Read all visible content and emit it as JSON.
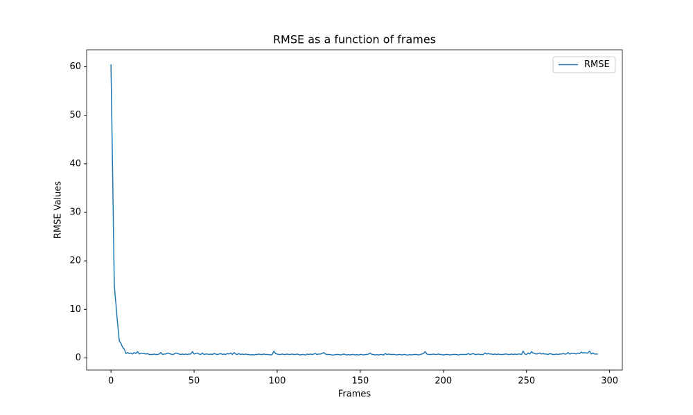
{
  "chart_data": {
    "type": "line",
    "title": "RMSE as a function of frames",
    "xlabel": "Frames",
    "ylabel": "RMSE Values",
    "xlim": [
      -14.65,
      307.65
    ],
    "ylim": [
      -2.5,
      63.5
    ],
    "xticks": [
      0,
      50,
      100,
      150,
      200,
      250,
      300
    ],
    "yticks": [
      0,
      10,
      20,
      30,
      40,
      50,
      60
    ],
    "legend": "upper right",
    "grid": false,
    "x": [
      0,
      1,
      2,
      3,
      4,
      5,
      6,
      7,
      8,
      9,
      10,
      11,
      12,
      13,
      14,
      15,
      16,
      17,
      18,
      19,
      20,
      21,
      22,
      23,
      24,
      25,
      26,
      27,
      28,
      29,
      30,
      31,
      32,
      33,
      34,
      35,
      36,
      37,
      38,
      39,
      40,
      41,
      42,
      43,
      44,
      45,
      46,
      47,
      48,
      49,
      50,
      51,
      52,
      53,
      54,
      55,
      56,
      57,
      58,
      59,
      60,
      61,
      62,
      63,
      64,
      65,
      66,
      67,
      68,
      69,
      70,
      71,
      72,
      73,
      74,
      75,
      76,
      77,
      78,
      79,
      80,
      81,
      82,
      83,
      84,
      85,
      86,
      87,
      88,
      89,
      90,
      91,
      92,
      93,
      94,
      95,
      96,
      97,
      98,
      99,
      100,
      101,
      102,
      103,
      104,
      105,
      106,
      107,
      108,
      109,
      110,
      111,
      112,
      113,
      114,
      115,
      116,
      117,
      118,
      119,
      120,
      121,
      122,
      123,
      124,
      125,
      126,
      127,
      128,
      129,
      130,
      131,
      132,
      133,
      134,
      135,
      136,
      137,
      138,
      139,
      140,
      141,
      142,
      143,
      144,
      145,
      146,
      147,
      148,
      149,
      150,
      151,
      152,
      153,
      154,
      155,
      156,
      157,
      158,
      159,
      160,
      161,
      162,
      163,
      164,
      165,
      166,
      167,
      168,
      169,
      170,
      171,
      172,
      173,
      174,
      175,
      176,
      177,
      178,
      179,
      180,
      181,
      182,
      183,
      184,
      185,
      186,
      187,
      188,
      189,
      190,
      191,
      192,
      193,
      194,
      195,
      196,
      197,
      198,
      199,
      200,
      201,
      202,
      203,
      204,
      205,
      206,
      207,
      208,
      209,
      210,
      211,
      212,
      213,
      214,
      215,
      216,
      217,
      218,
      219,
      220,
      221,
      222,
      223,
      224,
      225,
      226,
      227,
      228,
      229,
      230,
      231,
      232,
      233,
      234,
      235,
      236,
      237,
      238,
      239,
      240,
      241,
      242,
      243,
      244,
      245,
      246,
      247,
      248,
      249,
      250,
      251,
      252,
      253,
      254,
      255,
      256,
      257,
      258,
      259,
      260,
      261,
      262,
      263,
      264,
      265,
      266,
      267,
      268,
      269,
      270,
      271,
      272,
      273,
      274,
      275,
      276,
      277,
      278,
      279,
      280,
      281,
      282,
      283,
      284,
      285,
      286,
      287,
      288,
      289,
      290,
      291,
      292,
      293
    ],
    "series": [
      {
        "name": "RMSE",
        "color": "#1f77b4",
        "values": [
          60.5,
          38,
          15,
          11,
          7,
          3.5,
          3,
          2.2,
          1.8,
          0.9,
          1.1,
          0.9,
          1.0,
          0.8,
          1.1,
          0.9,
          1.3,
          0.8,
          1.0,
          0.9,
          0.9,
          0.8,
          0.9,
          0.7,
          0.7,
          0.7,
          0.8,
          0.7,
          0.7,
          0.8,
          1.1,
          0.7,
          0.8,
          0.8,
          1.0,
          0.9,
          0.8,
          0.7,
          0.8,
          1.0,
          0.9,
          0.8,
          0.7,
          0.8,
          0.7,
          0.8,
          0.7,
          0.8,
          0.8,
          1.3,
          0.8,
          0.9,
          1.0,
          0.8,
          0.7,
          1.0,
          0.7,
          0.8,
          0.8,
          0.7,
          0.8,
          0.7,
          0.9,
          0.8,
          0.7,
          0.8,
          0.9,
          0.7,
          0.8,
          0.7,
          0.9,
          0.8,
          1.0,
          0.7,
          1.1,
          0.8,
          0.7,
          0.9,
          0.7,
          0.8,
          0.7,
          0.8,
          0.7,
          0.7,
          0.6,
          0.7,
          0.6,
          0.7,
          0.7,
          0.8,
          0.7,
          0.7,
          0.8,
          0.7,
          0.7,
          0.7,
          0.6,
          0.7,
          1.4,
          0.9,
          0.8,
          0.7,
          0.7,
          0.8,
          0.7,
          0.7,
          0.8,
          0.7,
          0.7,
          0.8,
          0.7,
          0.7,
          0.8,
          0.7,
          0.6,
          0.7,
          0.7,
          0.6,
          0.8,
          0.7,
          0.8,
          0.7,
          0.8,
          0.9,
          0.7,
          0.8,
          0.8,
          0.9,
          1.1,
          0.8,
          0.7,
          0.7,
          0.7,
          0.6,
          0.6,
          0.7,
          0.7,
          0.7,
          0.6,
          0.7,
          0.8,
          0.7,
          0.6,
          0.7,
          0.6,
          0.7,
          0.7,
          0.6,
          0.7,
          0.6,
          0.7,
          0.7,
          0.6,
          0.7,
          0.7,
          0.8,
          1.0,
          0.7,
          0.7,
          0.6,
          0.7,
          0.6,
          0.7,
          0.7,
          0.6,
          0.9,
          0.7,
          0.8,
          0.7,
          0.7,
          0.7,
          0.7,
          0.6,
          0.7,
          0.7,
          0.6,
          0.7,
          0.7,
          0.6,
          0.6,
          0.7,
          0.6,
          0.7,
          0.7,
          0.7,
          0.6,
          0.7,
          0.8,
          0.9,
          1.3,
          0.8,
          0.7,
          0.7,
          0.7,
          0.8,
          0.7,
          0.7,
          0.8,
          0.7,
          0.7,
          0.6,
          0.7,
          0.7,
          0.7,
          0.6,
          0.7,
          0.7,
          0.7,
          0.7,
          0.6,
          0.7,
          0.7,
          0.7,
          0.7,
          0.7,
          0.9,
          0.7,
          0.8,
          0.9,
          0.7,
          0.7,
          0.8,
          0.7,
          0.7,
          0.7,
          1.0,
          0.8,
          0.9,
          0.8,
          0.8,
          0.7,
          0.8,
          0.7,
          0.8,
          0.7,
          0.7,
          0.7,
          0.8,
          0.8,
          0.7,
          0.7,
          0.8,
          0.7,
          0.8,
          0.7,
          0.8,
          0.8,
          0.7,
          1.4,
          0.8,
          0.7,
          1.0,
          0.8,
          1.3,
          1.0,
          0.9,
          0.8,
          0.9,
          1.0,
          0.8,
          0.9,
          0.8,
          0.8,
          0.7,
          0.9,
          0.8,
          0.7,
          0.7,
          0.8,
          0.7,
          0.8,
          0.8,
          0.9,
          0.8,
          0.8,
          1.1,
          0.8,
          0.9,
          0.9,
          0.9,
          0.8,
          1.0,
          0.9,
          1.2,
          1.0,
          1.1,
          1.0,
          1.0,
          1.4,
          0.8,
          1.0,
          0.8,
          0.8,
          0.8
        ]
      }
    ]
  }
}
